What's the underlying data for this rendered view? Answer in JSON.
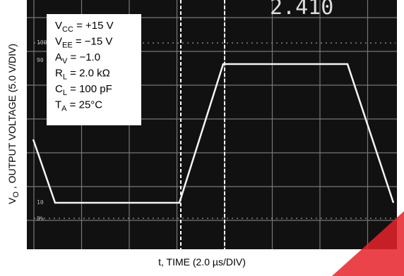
{
  "screen": {
    "readout": "2.410"
  },
  "scale_marks": [
    "100",
    "90",
    "10",
    "0%"
  ],
  "conditions": [
    {
      "main": "V",
      "sub": "CC",
      "rest": " = +15 V"
    },
    {
      "main": "V",
      "sub": "EE",
      "rest": " = −15 V"
    },
    {
      "main": "A",
      "sub": "V",
      "rest": " = −1.0"
    },
    {
      "main": "R",
      "sub": "L",
      "rest": " = 2.0 kΩ"
    },
    {
      "main": "C",
      "sub": "L",
      "rest": " = 100 pF"
    },
    {
      "main": "T",
      "sub": "A",
      "rest": " = 25°C"
    }
  ],
  "y_axis": {
    "main": "V",
    "sub": "O",
    "rest": " , OUTPUT VOLTAGE (5.0 V/DIV)"
  },
  "x_axis": {
    "pre": "t, TIME (2.0 ",
    "unit": "µs",
    "post": "/DIV)"
  }
}
